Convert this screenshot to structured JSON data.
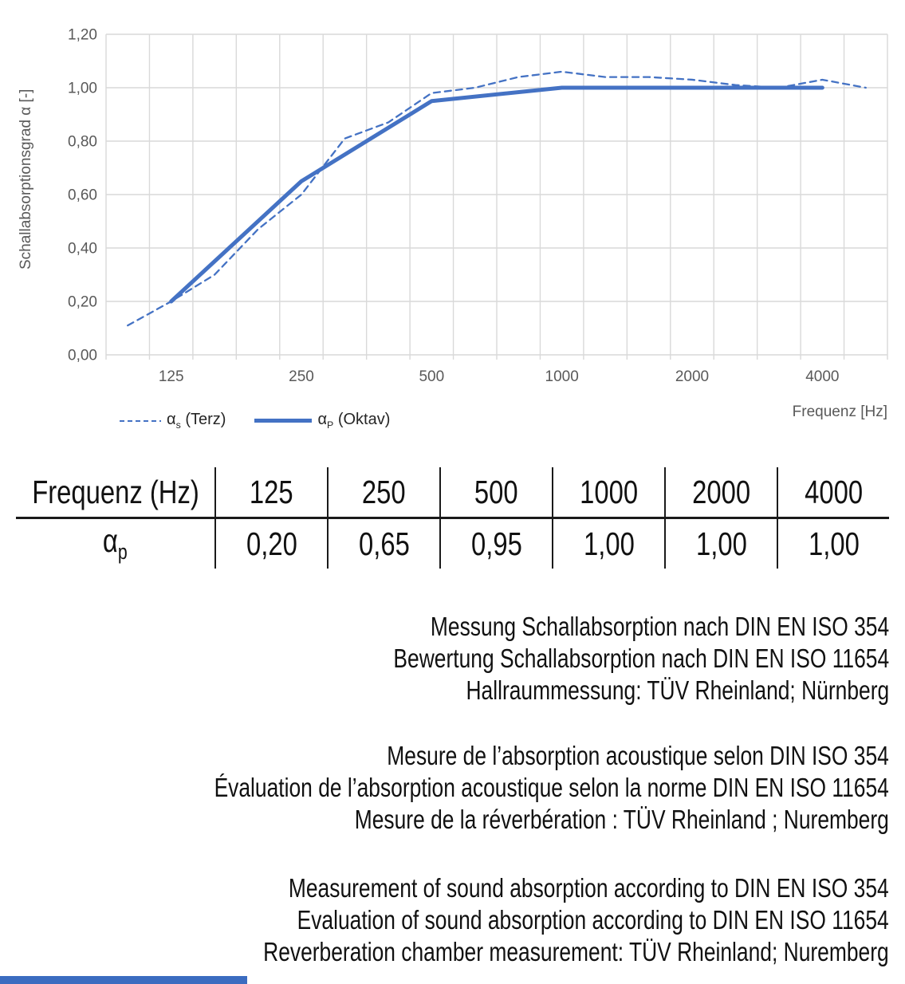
{
  "chart": {
    "y_axis_title": "Schallabsorptionsgrad α [-]",
    "x_axis_title": "Frequenz [Hz]",
    "legend": [
      {
        "symbol": "α",
        "sub": "s",
        "rest": " (Terz)"
      },
      {
        "symbol": "α",
        "sub": "P",
        "rest": " (Oktav)"
      }
    ]
  },
  "chart_data": {
    "type": "line",
    "title": "",
    "xlabel": "Frequenz [Hz]",
    "ylabel": "Schallabsorptionsgrad α [-]",
    "ylim": [
      0,
      1.2
    ],
    "grid": true,
    "legend_position": "bottom-left",
    "categories": [
      100,
      125,
      160,
      200,
      250,
      315,
      400,
      500,
      630,
      800,
      1000,
      1250,
      1600,
      2000,
      2500,
      3150,
      4000,
      5000
    ],
    "y_ticks": [
      {
        "value": 0.0,
        "label": "0,00"
      },
      {
        "value": 0.2,
        "label": "0,20"
      },
      {
        "value": 0.4,
        "label": "0,40"
      },
      {
        "value": 0.6,
        "label": "0,60"
      },
      {
        "value": 0.8,
        "label": "0,80"
      },
      {
        "value": 1.0,
        "label": "1,00"
      },
      {
        "value": 1.2,
        "label": "1,20"
      }
    ],
    "x_tick_labels": [
      {
        "value": 125,
        "label": "125"
      },
      {
        "value": 250,
        "label": "250"
      },
      {
        "value": 500,
        "label": "500"
      },
      {
        "value": 1000,
        "label": "1000"
      },
      {
        "value": 2000,
        "label": "2000"
      },
      {
        "value": 4000,
        "label": "4000"
      }
    ],
    "series": [
      {
        "name": "αs (Terz)",
        "style": "dashed",
        "x": [
          100,
          125,
          160,
          200,
          250,
          315,
          400,
          500,
          630,
          800,
          1000,
          1250,
          1600,
          2000,
          2500,
          3150,
          4000,
          5000
        ],
        "values": [
          0.11,
          0.2,
          0.3,
          0.47,
          0.6,
          0.81,
          0.87,
          0.98,
          1.0,
          1.04,
          1.06,
          1.04,
          1.04,
          1.03,
          1.01,
          1.0,
          1.03,
          1.0
        ]
      },
      {
        "name": "αP (Oktav)",
        "style": "solid",
        "x": [
          125,
          250,
          500,
          1000,
          2000,
          4000
        ],
        "values": [
          0.2,
          0.65,
          0.95,
          1.0,
          1.0,
          1.0
        ]
      }
    ]
  },
  "table": {
    "header_label": "Frequenz (Hz)",
    "frequencies": [
      "125",
      "250",
      "500",
      "1000",
      "2000",
      "4000"
    ],
    "row_symbol": "α",
    "row_sub": "p",
    "values": [
      "0,20",
      "0,65",
      "0,95",
      "1,00",
      "1,00",
      "1,00"
    ]
  },
  "texts": {
    "de": [
      "Messung Schallabsorption nach DIN EN ISO 354",
      "Bewertung Schallabsorption nach DIN EN ISO 11654",
      "Hallraummessung: TÜV Rheinland; Nürnberg"
    ],
    "fr": [
      "Mesure de l’absorption acoustique selon DIN ISO 354",
      "Évaluation de l’absorption acoustique selon la norme DIN EN ISO 11654",
      "Mesure de la réverbération : TÜV Rheinland ; Nuremberg"
    ],
    "en": [
      "Measurement of sound absorption according to DIN EN ISO 354",
      "Evaluation of sound absorption according to DIN EN ISO 11654",
      "Reverberation chamber measurement: TÜV Rheinland; Nuremberg"
    ]
  },
  "colors": {
    "series_blue": "#4472c4",
    "grid": "#d9d9d9",
    "axis_text": "#595959",
    "accent_bar": "#3b6cc0"
  }
}
